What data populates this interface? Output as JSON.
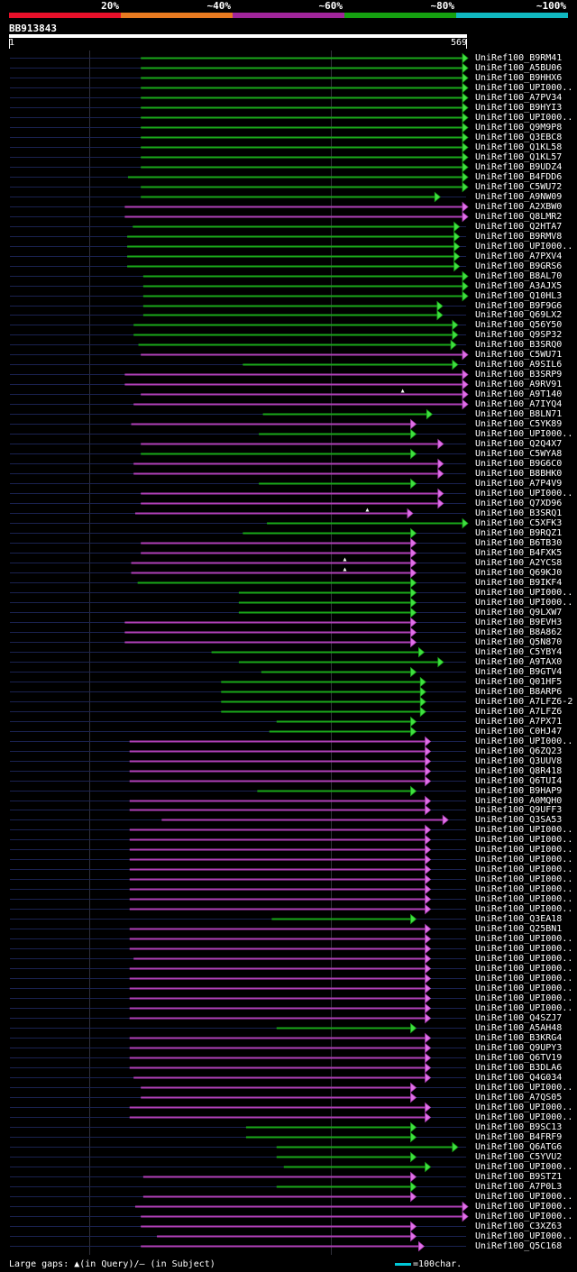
{
  "legend": [
    {
      "label": "20%",
      "color": "#e8102a"
    },
    {
      "label": "~40%",
      "color": "#e87a20"
    },
    {
      "label": "~60%",
      "color": "#a0259a"
    },
    {
      "label": "~80%",
      "color": "#15a010"
    },
    {
      "label": "~100%",
      "color": "#10b8c0"
    }
  ],
  "query": {
    "name": "BB913843",
    "start": "1",
    "end": "569"
  },
  "footer": {
    "gaps_text": "Large gaps: ▲(in Query)/– (in Subject)",
    "scale_text": "=100char."
  },
  "colors": {
    "green": "#1aa81a",
    "magenta": "#b040b8",
    "grey_line": "#1a2250",
    "green_head": "#40e040",
    "magenta_head": "#e070e8"
  },
  "hits": [
    {
      "label": "UniRef100_B9RM41",
      "s": 164,
      "e": 569,
      "c": "g"
    },
    {
      "label": "UniRef100_A5BU06",
      "s": 164,
      "e": 569,
      "c": "g"
    },
    {
      "label": "UniRef100_B9HHX6",
      "s": 164,
      "e": 569,
      "c": "g"
    },
    {
      "label": "UniRef100_UPI000..",
      "s": 164,
      "e": 569,
      "c": "g"
    },
    {
      "label": "UniRef100_A7PV34",
      "s": 164,
      "e": 569,
      "c": "g"
    },
    {
      "label": "UniRef100_B9HYI3",
      "s": 164,
      "e": 569,
      "c": "g"
    },
    {
      "label": "UniRef100_UPI000..",
      "s": 164,
      "e": 569,
      "c": "g"
    },
    {
      "label": "UniRef100_Q9M9P8",
      "s": 164,
      "e": 569,
      "c": "g"
    },
    {
      "label": "UniRef100_Q3EBC8",
      "s": 164,
      "e": 569,
      "c": "g"
    },
    {
      "label": "UniRef100_Q1KL58",
      "s": 164,
      "e": 569,
      "c": "g"
    },
    {
      "label": "UniRef100_Q1KL57",
      "s": 164,
      "e": 569,
      "c": "g"
    },
    {
      "label": "UniRef100_B9UDZ4",
      "s": 164,
      "e": 569,
      "c": "g"
    },
    {
      "label": "UniRef100_B4FDD6",
      "s": 148,
      "e": 569,
      "c": "g"
    },
    {
      "label": "UniRef100_C5WU72",
      "s": 164,
      "e": 569,
      "c": "g"
    },
    {
      "label": "UniRef100_A9NW09",
      "s": 164,
      "e": 530,
      "c": "g"
    },
    {
      "label": "UniRef100_A2XBW0",
      "s": 144,
      "e": 565,
      "c": "m"
    },
    {
      "label": "UniRef100_Q8LMR2",
      "s": 144,
      "e": 565,
      "c": "m"
    },
    {
      "label": "UniRef100_Q2HTA7",
      "s": 154,
      "e": 554,
      "c": "g"
    },
    {
      "label": "UniRef100_B9RMV8",
      "s": 147,
      "e": 554,
      "c": "g"
    },
    {
      "label": "UniRef100_UPI000..",
      "s": 147,
      "e": 554,
      "c": "g"
    },
    {
      "label": "UniRef100_A7PXV4",
      "s": 147,
      "e": 554,
      "c": "g"
    },
    {
      "label": "UniRef100_B9GRS6",
      "s": 147,
      "e": 554,
      "c": "g"
    },
    {
      "label": "UniRef100_B8AL70",
      "s": 167,
      "e": 569,
      "c": "g"
    },
    {
      "label": "UniRef100_A3AJX5",
      "s": 167,
      "e": 569,
      "c": "g"
    },
    {
      "label": "UniRef100_Q10HL3",
      "s": 167,
      "e": 569,
      "c": "g"
    },
    {
      "label": "UniRef100_B9F9G6",
      "s": 167,
      "e": 533,
      "c": "g"
    },
    {
      "label": "UniRef100_Q69LX2",
      "s": 167,
      "e": 533,
      "c": "g"
    },
    {
      "label": "UniRef100_Q56Y50",
      "s": 155,
      "e": 552,
      "c": "g"
    },
    {
      "label": "UniRef100_Q9SP32",
      "s": 155,
      "e": 552,
      "c": "g"
    },
    {
      "label": "UniRef100_B3SRQ0",
      "s": 161,
      "e": 550,
      "c": "g"
    },
    {
      "label": "UniRef100_C5WU71",
      "s": 164,
      "e": 569,
      "c": "m"
    },
    {
      "label": "UniRef100_A9SIL6",
      "s": 291,
      "e": 552,
      "c": "g"
    },
    {
      "label": "UniRef100_B3SRP9",
      "s": 144,
      "e": 565,
      "c": "m"
    },
    {
      "label": "UniRef100_A9RV91",
      "s": 144,
      "e": 565,
      "c": "m"
    },
    {
      "label": "UniRef100_A9T140",
      "s": 164,
      "e": 569,
      "c": "m",
      "gq": [
        490
      ]
    },
    {
      "label": "UniRef100_A7IYQ4",
      "s": 155,
      "e": 565,
      "c": "m"
    },
    {
      "label": "UniRef100_B8LN71",
      "s": 316,
      "e": 520,
      "c": "g"
    },
    {
      "label": "UniRef100_C5YK89",
      "s": 152,
      "e": 500,
      "c": "m"
    },
    {
      "label": "UniRef100_UPI000..",
      "s": 311,
      "e": 500,
      "c": "g"
    },
    {
      "label": "UniRef100_Q2Q4X7",
      "s": 164,
      "e": 534,
      "c": "m"
    },
    {
      "label": "UniRef100_C5WYA8",
      "s": 164,
      "e": 500,
      "c": "g"
    },
    {
      "label": "UniRef100_B9G6C0",
      "s": 155,
      "e": 534,
      "c": "m"
    },
    {
      "label": "UniRef100_B8BHK0",
      "s": 155,
      "e": 534,
      "c": "m"
    },
    {
      "label": "UniRef100_A7P4V9",
      "s": 311,
      "e": 500,
      "c": "g"
    },
    {
      "label": "UniRef100_UPI000..",
      "s": 164,
      "e": 534,
      "c": "m"
    },
    {
      "label": "UniRef100_Q7XD96",
      "s": 164,
      "e": 534,
      "c": "m"
    },
    {
      "label": "UniRef100_B3SRQ1",
      "s": 157,
      "e": 496,
      "c": "m",
      "gq": [
        446
      ]
    },
    {
      "label": "UniRef100_C5XFK3",
      "s": 321,
      "e": 569,
      "c": "g"
    },
    {
      "label": "UniRef100_B9RQZ1",
      "s": 291,
      "e": 500,
      "c": "g"
    },
    {
      "label": "UniRef100_B6TB30",
      "s": 164,
      "e": 500,
      "c": "m"
    },
    {
      "label": "UniRef100_B4FXK5",
      "s": 164,
      "e": 500,
      "c": "m"
    },
    {
      "label": "UniRef100_A2YCS8",
      "s": 152,
      "e": 500,
      "c": "m",
      "gq": [
        418
      ]
    },
    {
      "label": "UniRef100_Q69KJ0",
      "s": 152,
      "e": 500,
      "c": "m",
      "gq": [
        418
      ]
    },
    {
      "label": "UniRef100_B9IKF4",
      "s": 160,
      "e": 500,
      "c": "g"
    },
    {
      "label": "UniRef100_UPI000..",
      "s": 286,
      "e": 500,
      "c": "g"
    },
    {
      "label": "UniRef100_UPI000..",
      "s": 286,
      "e": 500,
      "c": "g"
    },
    {
      "label": "UniRef100_Q9LXW7",
      "s": 286,
      "e": 500,
      "c": "g"
    },
    {
      "label": "UniRef100_B9EVH3",
      "s": 144,
      "e": 500,
      "c": "m"
    },
    {
      "label": "UniRef100_B8A862",
      "s": 144,
      "e": 500,
      "c": "m"
    },
    {
      "label": "UniRef100_Q5N870",
      "s": 144,
      "e": 500,
      "c": "m"
    },
    {
      "label": "UniRef100_C5YBY4",
      "s": 252,
      "e": 510,
      "c": "g"
    },
    {
      "label": "UniRef100_A9TAX0",
      "s": 286,
      "e": 534,
      "c": "g"
    },
    {
      "label": "UniRef100_B9GTV4",
      "s": 314,
      "e": 500,
      "c": "g"
    },
    {
      "label": "UniRef100_Q01HF5",
      "s": 264,
      "e": 512,
      "c": "g"
    },
    {
      "label": "UniRef100_B8ARP6",
      "s": 264,
      "e": 512,
      "c": "g"
    },
    {
      "label": "UniRef100_A7LFZ6-2",
      "s": 264,
      "e": 512,
      "c": "g"
    },
    {
      "label": "UniRef100_A7LFZ6",
      "s": 264,
      "e": 512,
      "c": "g"
    },
    {
      "label": "UniRef100_A7PX71",
      "s": 333,
      "e": 500,
      "c": "g"
    },
    {
      "label": "UniRef100_C0HJ47",
      "s": 324,
      "e": 500,
      "c": "g"
    },
    {
      "label": "UniRef100_UPI000..",
      "s": 150,
      "e": 518,
      "c": "m"
    },
    {
      "label": "UniRef100_Q6ZQ23",
      "s": 150,
      "e": 518,
      "c": "m"
    },
    {
      "label": "UniRef100_Q3UUV8",
      "s": 150,
      "e": 518,
      "c": "m"
    },
    {
      "label": "UniRef100_Q8R418",
      "s": 150,
      "e": 518,
      "c": "m"
    },
    {
      "label": "UniRef100_Q6TUI4",
      "s": 150,
      "e": 518,
      "c": "m"
    },
    {
      "label": "UniRef100_B9HAP9",
      "s": 309,
      "e": 500,
      "c": "g"
    },
    {
      "label": "UniRef100_A0MQH0",
      "s": 150,
      "e": 518,
      "c": "m"
    },
    {
      "label": "UniRef100_Q9UFF3",
      "s": 150,
      "e": 518,
      "c": "m"
    },
    {
      "label": "UniRef100_Q3SA53",
      "s": 190,
      "e": 540,
      "c": "m"
    },
    {
      "label": "UniRef100_UPI000..",
      "s": 150,
      "e": 518,
      "c": "m"
    },
    {
      "label": "UniRef100_UPI000..",
      "s": 150,
      "e": 518,
      "c": "m"
    },
    {
      "label": "UniRef100_UPI000..",
      "s": 150,
      "e": 518,
      "c": "m"
    },
    {
      "label": "UniRef100_UPI000..",
      "s": 150,
      "e": 518,
      "c": "m"
    },
    {
      "label": "UniRef100_UPI000..",
      "s": 150,
      "e": 518,
      "c": "m"
    },
    {
      "label": "UniRef100_UPI000..",
      "s": 150,
      "e": 518,
      "c": "m"
    },
    {
      "label": "UniRef100_UPI000..",
      "s": 150,
      "e": 518,
      "c": "m"
    },
    {
      "label": "UniRef100_UPI000..",
      "s": 150,
      "e": 518,
      "c": "m"
    },
    {
      "label": "UniRef100_UPI000..",
      "s": 150,
      "e": 518,
      "c": "m"
    },
    {
      "label": "UniRef100_Q3EA18",
      "s": 327,
      "e": 500,
      "c": "g"
    },
    {
      "label": "UniRef100_Q25BN1",
      "s": 150,
      "e": 518,
      "c": "m"
    },
    {
      "label": "UniRef100_UPI000..",
      "s": 150,
      "e": 518,
      "c": "m"
    },
    {
      "label": "UniRef100_UPI000..",
      "s": 150,
      "e": 518,
      "c": "m"
    },
    {
      "label": "UniRef100_UPI000..",
      "s": 155,
      "e": 518,
      "c": "m"
    },
    {
      "label": "UniRef100_UPI000..",
      "s": 150,
      "e": 518,
      "c": "m"
    },
    {
      "label": "UniRef100_UPI000..",
      "s": 150,
      "e": 518,
      "c": "m"
    },
    {
      "label": "UniRef100_UPI000..",
      "s": 150,
      "e": 518,
      "c": "m"
    },
    {
      "label": "UniRef100_UPI000..",
      "s": 150,
      "e": 518,
      "c": "m"
    },
    {
      "label": "UniRef100_UPI000..",
      "s": 150,
      "e": 518,
      "c": "m"
    },
    {
      "label": "UniRef100_Q4SZJ7",
      "s": 150,
      "e": 518,
      "c": "m"
    },
    {
      "label": "UniRef100_A5AH48",
      "s": 333,
      "e": 500,
      "c": "g"
    },
    {
      "label": "UniRef100_B3KRG4",
      "s": 150,
      "e": 518,
      "c": "m"
    },
    {
      "label": "UniRef100_Q9UPY3",
      "s": 150,
      "e": 518,
      "c": "m"
    },
    {
      "label": "UniRef100_Q6TV19",
      "s": 150,
      "e": 518,
      "c": "m"
    },
    {
      "label": "UniRef100_B3DLA6",
      "s": 150,
      "e": 518,
      "c": "m"
    },
    {
      "label": "UniRef100_Q4G034",
      "s": 155,
      "e": 518,
      "c": "m"
    },
    {
      "label": "UniRef100_UPI000..",
      "s": 164,
      "e": 500,
      "c": "m"
    },
    {
      "label": "UniRef100_A7QS05",
      "s": 164,
      "e": 500,
      "c": "m"
    },
    {
      "label": "UniRef100_UPI000..",
      "s": 150,
      "e": 518,
      "c": "m"
    },
    {
      "label": "UniRef100_UPI000..",
      "s": 150,
      "e": 518,
      "c": "m"
    },
    {
      "label": "UniRef100_B9SC13",
      "s": 295,
      "e": 500,
      "c": "g"
    },
    {
      "label": "UniRef100_B4FRF9",
      "s": 295,
      "e": 500,
      "c": "g"
    },
    {
      "label": "UniRef100_Q6ATG6",
      "s": 333,
      "e": 552,
      "c": "g"
    },
    {
      "label": "UniRef100_C5YVU2",
      "s": 333,
      "e": 500,
      "c": "g"
    },
    {
      "label": "UniRef100_UPI000..",
      "s": 342,
      "e": 518,
      "c": "g"
    },
    {
      "label": "UniRef100_B9STZ1",
      "s": 167,
      "e": 500,
      "c": "m"
    },
    {
      "label": "UniRef100_A7P0L3",
      "s": 333,
      "e": 500,
      "c": "g"
    },
    {
      "label": "UniRef100_UPI000..",
      "s": 167,
      "e": 500,
      "c": "m"
    },
    {
      "label": "UniRef100_UPI000..",
      "s": 157,
      "e": 569,
      "c": "m"
    },
    {
      "label": "UniRef100_UPI000..",
      "s": 164,
      "e": 569,
      "c": "m"
    },
    {
      "label": "UniRef100_C3XZ63",
      "s": 164,
      "e": 500,
      "c": "m"
    },
    {
      "label": "UniRef100_UPI000..",
      "s": 184,
      "e": 500,
      "c": "m"
    },
    {
      "label": "UniRef100_Q5C168",
      "s": 164,
      "e": 510,
      "c": "m"
    }
  ]
}
